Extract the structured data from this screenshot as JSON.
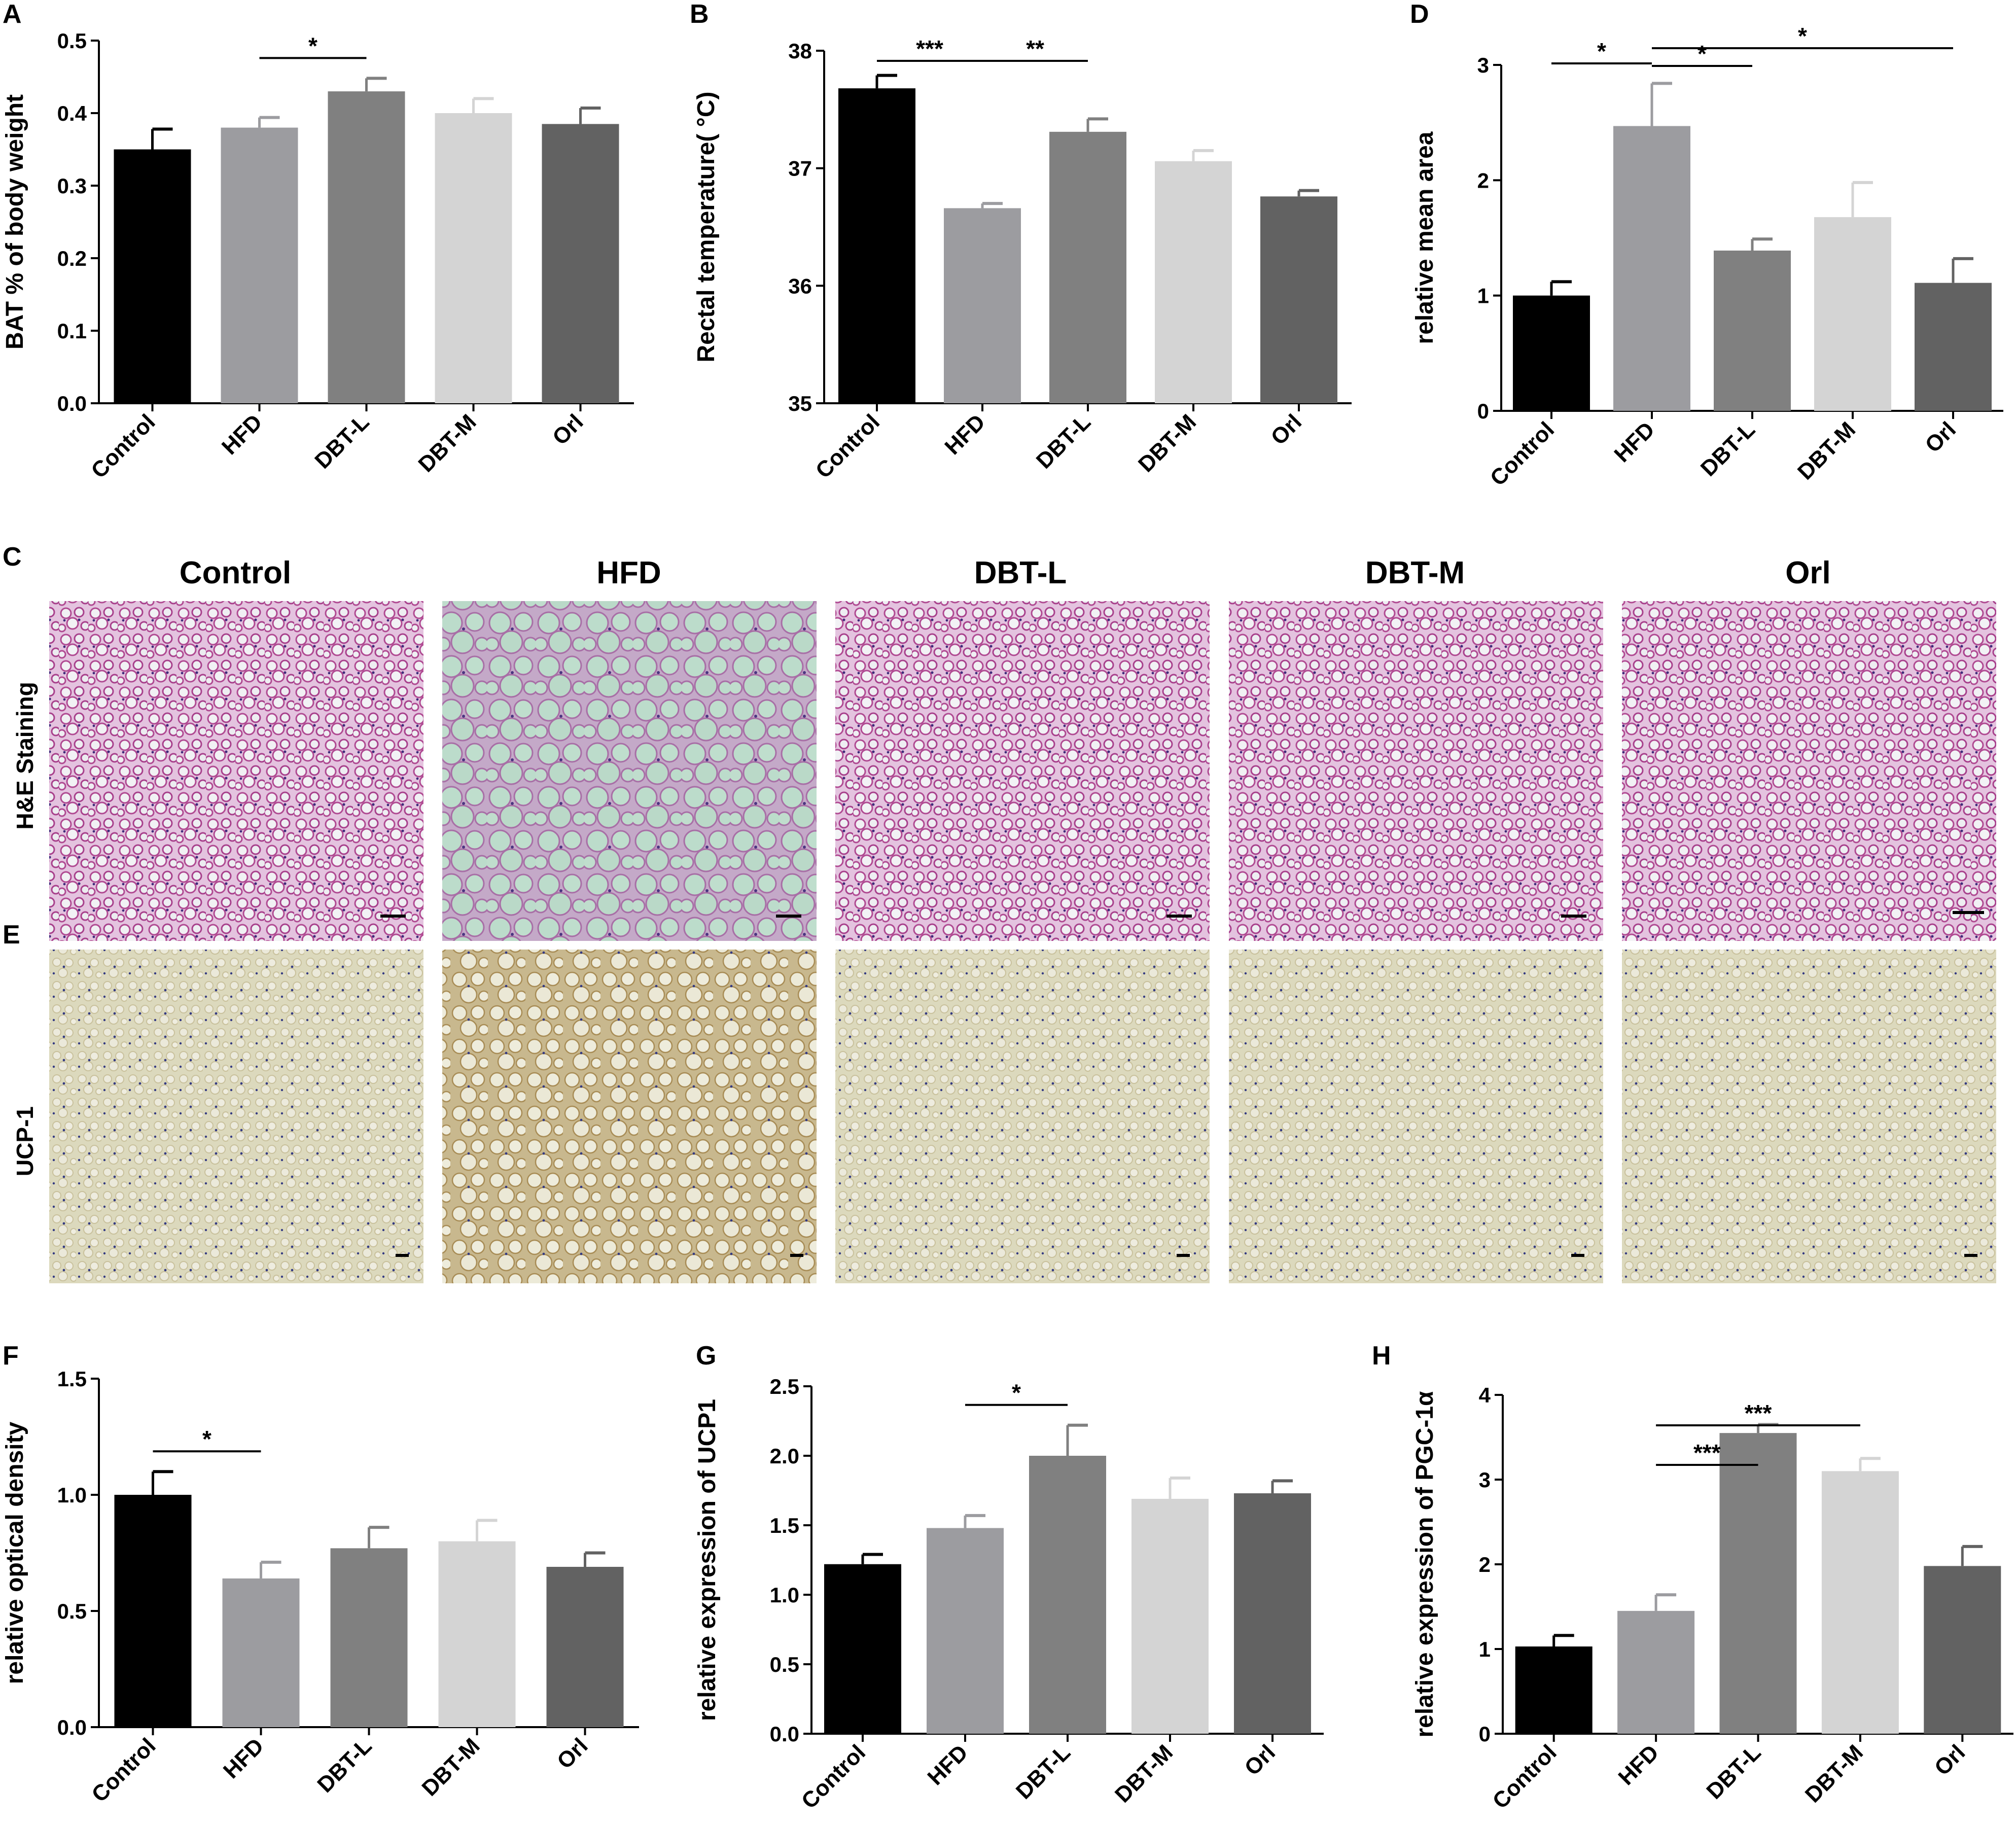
{
  "colors": {
    "Control": "#000000",
    "HFD": "#9c9ca0",
    "DBT-L": "#808080",
    "DBT-M": "#d4d4d4",
    "Orl": "#626262",
    "he_background": "#e2bede",
    "he_background_hfd": "#b7d6c6",
    "he_cells": "#b0468e",
    "ucp1_background": "#dedbbd",
    "ucp1_nuclei": "#3b3f86"
  },
  "panels_c_e": {
    "label_c": "C",
    "label_e": "E",
    "columns": [
      "Control",
      "HFD",
      "DBT-L",
      "DBT-M",
      "Orl"
    ],
    "row_he": "H&E Staining",
    "row_ucp": "UCP-1"
  },
  "chart_data": [
    {
      "id": "A",
      "panel_label": "A",
      "type": "bar",
      "categories": [
        "Control",
        "HFD",
        "DBT-L",
        "DBT-M",
        "Orl"
      ],
      "values": [
        0.35,
        0.38,
        0.43,
        0.4,
        0.385
      ],
      "errors": [
        0.028,
        0.014,
        0.018,
        0.02,
        0.022
      ],
      "ylabel": "BAT % of body weight",
      "ylim": [
        0,
        0.5
      ],
      "yticks": [
        "0.0",
        "0.1",
        "0.2",
        "0.3",
        "0.4",
        "0.5"
      ],
      "significance": [
        {
          "from": "HFD",
          "to": "DBT-L",
          "label": "*"
        }
      ]
    },
    {
      "id": "B",
      "panel_label": "B",
      "type": "bar",
      "categories": [
        "Control",
        "HFD",
        "DBT-L",
        "DBT-M",
        "Orl"
      ],
      "values": [
        37.68,
        36.66,
        37.31,
        37.06,
        36.76
      ],
      "errors": [
        0.11,
        0.04,
        0.11,
        0.09,
        0.05
      ],
      "ylabel": "Rectal temperature( °C)",
      "ylim": [
        35,
        38
      ],
      "yticks": [
        "35",
        "36",
        "37",
        "38"
      ],
      "significance": [
        {
          "from": "Control",
          "to": "HFD",
          "label": "***"
        },
        {
          "from": "HFD",
          "to": "DBT-L",
          "label": "**"
        }
      ]
    },
    {
      "id": "D",
      "panel_label": "D",
      "type": "bar",
      "categories": [
        "Control",
        "HFD",
        "DBT-L",
        "DBT-M",
        "Orl"
      ],
      "values": [
        1.0,
        2.47,
        1.39,
        1.68,
        1.11
      ],
      "errors": [
        0.12,
        0.37,
        0.1,
        0.3,
        0.21
      ],
      "ylabel": "relative mean area",
      "ylim": [
        0,
        3
      ],
      "yticks": [
        "0",
        "1",
        "2",
        "3"
      ],
      "significance": [
        {
          "from": "Control",
          "to": "HFD",
          "label": "*"
        },
        {
          "from": "HFD",
          "to": "DBT-L",
          "label": "*"
        },
        {
          "from": "HFD",
          "to": "Orl",
          "label": "*"
        }
      ]
    },
    {
      "id": "F",
      "panel_label": "F",
      "type": "bar",
      "categories": [
        "Control",
        "HFD",
        "DBT-L",
        "DBT-M",
        "Orl"
      ],
      "values": [
        1.0,
        0.64,
        0.77,
        0.8,
        0.69
      ],
      "errors": [
        0.1,
        0.07,
        0.09,
        0.09,
        0.06
      ],
      "ylabel": "relative optical density",
      "ylim": [
        0,
        1.5
      ],
      "yticks": [
        "0.0",
        "0.5",
        "1.0",
        "1.5"
      ],
      "significance": [
        {
          "from": "Control",
          "to": "HFD",
          "label": "*"
        }
      ]
    },
    {
      "id": "G",
      "panel_label": "G",
      "type": "bar",
      "categories": [
        "Control",
        "HFD",
        "DBT-L",
        "DBT-M",
        "Orl"
      ],
      "values": [
        1.22,
        1.48,
        2.0,
        1.69,
        1.73
      ],
      "errors": [
        0.07,
        0.09,
        0.22,
        0.15,
        0.09
      ],
      "ylabel": "relative expression of UCP1",
      "ylim": [
        0,
        2.5
      ],
      "yticks": [
        "0.0",
        "0.5",
        "1.0",
        "1.5",
        "2.0",
        "2.5"
      ],
      "significance": [
        {
          "from": "HFD",
          "to": "DBT-L",
          "label": "*"
        }
      ]
    },
    {
      "id": "H",
      "panel_label": "H",
      "type": "bar",
      "categories": [
        "Control",
        "HFD",
        "DBT-L",
        "DBT-M",
        "Orl"
      ],
      "values": [
        1.03,
        1.45,
        3.55,
        3.1,
        1.98
      ],
      "errors": [
        0.13,
        0.19,
        0.1,
        0.15,
        0.23
      ],
      "ylabel": "relative expression of PGC-1α",
      "ylim": [
        0,
        4
      ],
      "yticks": [
        "0",
        "1",
        "2",
        "3",
        "4"
      ],
      "significance": [
        {
          "from": "HFD",
          "to": "DBT-L",
          "label": "***"
        },
        {
          "from": "HFD",
          "to": "DBT-M",
          "label": "***"
        }
      ]
    }
  ]
}
